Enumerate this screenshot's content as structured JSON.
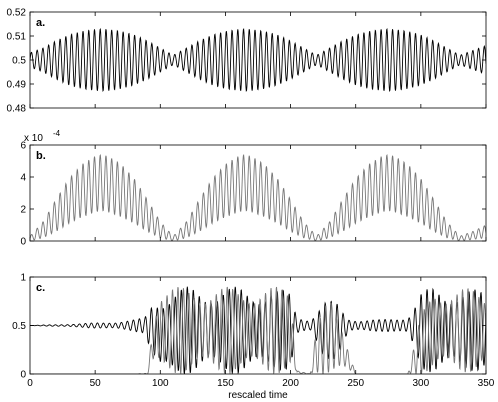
{
  "chart_data": [
    {
      "type": "line",
      "panel_label": "a.",
      "xlim": [
        0,
        350
      ],
      "ylim": [
        0.48,
        0.52
      ],
      "yticks": [
        0.48,
        0.49,
        0.5,
        0.51,
        0.52
      ],
      "ytick_labels": [
        "0.48",
        "0.49",
        "0.5",
        "0.51",
        "0.52"
      ],
      "grid": false,
      "series": [
        {
          "color": "#000000",
          "envelope_period": 110,
          "envelope_peak_x": [
            56,
            166,
            276
          ],
          "carrier_period": 4.4,
          "x": [
            0,
            10,
            20,
            30,
            40,
            50,
            55,
            60,
            70,
            80,
            90,
            100,
            110,
            120,
            130,
            140,
            150,
            160,
            165,
            170,
            180,
            190,
            200,
            210,
            220,
            230,
            240,
            250,
            260,
            270,
            275,
            280,
            290,
            300,
            310,
            320,
            330,
            340,
            350
          ],
          "amplitude": [
            0.003,
            0.005,
            0.008,
            0.0105,
            0.012,
            0.0128,
            0.013,
            0.0128,
            0.012,
            0.0105,
            0.008,
            0.005,
            0.002,
            0.005,
            0.008,
            0.0105,
            0.012,
            0.0128,
            0.013,
            0.0128,
            0.012,
            0.0105,
            0.008,
            0.005,
            0.002,
            0.005,
            0.008,
            0.0105,
            0.012,
            0.0128,
            0.013,
            0.0128,
            0.012,
            0.0105,
            0.008,
            0.005,
            0.002,
            0.004,
            0.006
          ],
          "baseline": 0.5
        }
      ]
    },
    {
      "type": "line",
      "panel_label": "b.",
      "xlim": [
        0,
        350
      ],
      "ylim": [
        0,
        6
      ],
      "yticks": [
        0,
        2,
        4,
        6
      ],
      "ytick_labels": [
        "0",
        "2",
        "4",
        "6"
      ],
      "scale_label": "x 10",
      "scale_exponent": "-4",
      "grid": false,
      "series": [
        {
          "color": "#777777",
          "carrier_period": 4.4,
          "x": [
            0,
            10,
            20,
            30,
            40,
            50,
            55,
            60,
            70,
            80,
            90,
            100,
            110,
            120,
            130,
            140,
            150,
            160,
            165,
            170,
            180,
            190,
            200,
            210,
            220,
            230,
            240,
            250,
            260,
            270,
            275,
            280,
            290,
            300,
            310,
            320,
            330,
            340,
            350
          ],
          "upper": [
            0.3,
            1.2,
            2.6,
            3.9,
            4.8,
            5.3,
            5.4,
            5.3,
            4.8,
            3.9,
            2.6,
            1.2,
            0.3,
            1.2,
            2.6,
            3.9,
            4.8,
            5.3,
            5.4,
            5.3,
            4.8,
            3.9,
            2.6,
            1.2,
            0.3,
            1.2,
            2.6,
            3.9,
            4.8,
            5.3,
            5.4,
            5.3,
            4.8,
            3.9,
            2.6,
            1.2,
            0.3,
            0.6,
            1.0
          ],
          "lower": [
            0.0,
            0.2,
            0.6,
            1.1,
            1.5,
            1.8,
            1.9,
            1.8,
            1.5,
            1.1,
            0.6,
            0.2,
            0.0,
            0.2,
            0.6,
            1.1,
            1.5,
            1.8,
            1.9,
            1.8,
            1.5,
            1.1,
            0.6,
            0.2,
            0.0,
            0.2,
            0.6,
            1.1,
            1.5,
            1.8,
            1.9,
            1.8,
            1.5,
            1.1,
            0.6,
            0.2,
            0.0,
            0.1,
            0.2
          ]
        }
      ]
    },
    {
      "type": "line",
      "panel_label": "c.",
      "xlim": [
        0,
        350
      ],
      "ylim": [
        0,
        1
      ],
      "yticks": [
        0,
        0.5,
        1
      ],
      "ytick_labels": [
        "0",
        "0.5",
        "1"
      ],
      "xticks": [
        0,
        50,
        100,
        150,
        200,
        250,
        300,
        350
      ],
      "xtick_labels": [
        "0",
        "50",
        "100",
        "150",
        "200",
        "250",
        "300",
        "350"
      ],
      "xlabel": "rescaled time",
      "grid": false,
      "series": [
        {
          "color": "#000000",
          "carrier_period": 4.6,
          "x": [
            0,
            20,
            40,
            60,
            80,
            88,
            95,
            100,
            120,
            140,
            160,
            180,
            200,
            205,
            215,
            225,
            235,
            245,
            255,
            270,
            290,
            300,
            310,
            330,
            350
          ],
          "mid": [
            0.5,
            0.5,
            0.5,
            0.5,
            0.5,
            0.5,
            0.45,
            0.4,
            0.45,
            0.45,
            0.45,
            0.45,
            0.45,
            0.5,
            0.5,
            0.45,
            0.45,
            0.5,
            0.5,
            0.5,
            0.5,
            0.45,
            0.45,
            0.45,
            0.45
          ],
          "amplitude": [
            0.0,
            0.01,
            0.02,
            0.035,
            0.06,
            0.08,
            0.35,
            0.45,
            0.45,
            0.45,
            0.45,
            0.45,
            0.4,
            0.1,
            0.07,
            0.3,
            0.3,
            0.08,
            0.06,
            0.06,
            0.1,
            0.4,
            0.45,
            0.45,
            0.4
          ]
        },
        {
          "color": "#777777",
          "carrier_period": 4.2,
          "x": [
            0,
            80,
            90,
            95,
            100,
            120,
            140,
            160,
            180,
            200,
            205,
            215,
            220,
            230,
            240,
            250,
            290,
            300,
            310,
            330,
            350
          ],
          "mid": [
            0.0,
            0.0,
            0.0,
            0.35,
            0.45,
            0.45,
            0.45,
            0.45,
            0.45,
            0.45,
            0.02,
            0.0,
            0.25,
            0.4,
            0.25,
            0.0,
            0.0,
            0.3,
            0.45,
            0.45,
            0.45
          ],
          "amplitude": [
            0.0,
            0.0,
            0.01,
            0.3,
            0.45,
            0.45,
            0.45,
            0.45,
            0.45,
            0.45,
            0.02,
            0.0,
            0.25,
            0.4,
            0.25,
            0.0,
            0.0,
            0.3,
            0.45,
            0.45,
            0.4
          ]
        }
      ]
    }
  ]
}
